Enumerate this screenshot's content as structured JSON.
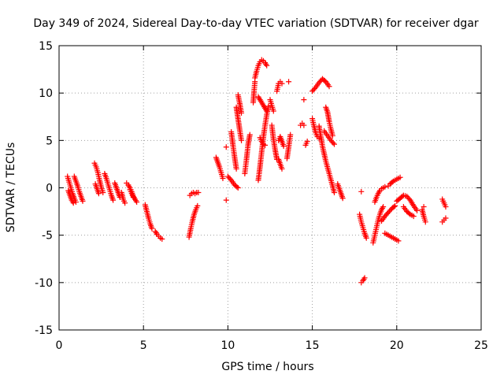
{
  "chart_data": {
    "type": "scatter",
    "title": "Day 349 of 2024, Sidereal Day-to-day VTEC variation (SDTVAR) for receiver dgar",
    "xlabel": "GPS time / hours",
    "ylabel": "SDTVAR / TECUs",
    "xlim": [
      0,
      25
    ],
    "ylim": [
      -15,
      15
    ],
    "xticks": [
      0,
      5,
      10,
      15,
      20,
      25
    ],
    "yticks": [
      -15,
      -10,
      -5,
      0,
      5,
      10,
      15
    ],
    "grid": true,
    "marker": "+",
    "series_color": "#ff0000",
    "segments": [
      [
        [
          0.5,
          1.2
        ],
        [
          0.6,
          0.6
        ],
        [
          0.7,
          0.0
        ],
        [
          0.8,
          -0.6
        ],
        [
          0.9,
          -1.1
        ],
        [
          1.0,
          -1.5
        ]
      ],
      [
        [
          0.55,
          -0.3
        ],
        [
          0.65,
          -0.8
        ],
        [
          0.75,
          -1.3
        ],
        [
          0.85,
          -1.6
        ]
      ],
      [
        [
          0.9,
          1.2
        ],
        [
          1.0,
          0.7
        ],
        [
          1.1,
          0.2
        ],
        [
          1.2,
          -0.4
        ],
        [
          1.3,
          -0.9
        ],
        [
          1.4,
          -1.4
        ]
      ],
      [
        [
          2.1,
          2.6
        ],
        [
          2.2,
          2.2
        ],
        [
          2.3,
          1.6
        ],
        [
          2.4,
          0.8
        ],
        [
          2.5,
          0.1
        ],
        [
          2.6,
          -0.5
        ]
      ],
      [
        [
          2.15,
          0.4
        ],
        [
          2.25,
          -0.1
        ],
        [
          2.35,
          -0.6
        ]
      ],
      [
        [
          2.7,
          1.5
        ],
        [
          2.8,
          1.0
        ],
        [
          2.9,
          0.4
        ],
        [
          3.0,
          -0.2
        ],
        [
          3.1,
          -0.8
        ],
        [
          3.2,
          -1.3
        ]
      ],
      [
        [
          3.3,
          0.5
        ],
        [
          3.4,
          0.0
        ],
        [
          3.5,
          -0.5
        ],
        [
          3.6,
          -1.0
        ]
      ],
      [
        [
          3.7,
          -0.5
        ],
        [
          3.8,
          -1.2
        ],
        [
          3.9,
          -1.6
        ]
      ],
      [
        [
          4.0,
          0.5
        ],
        [
          4.1,
          0.3
        ],
        [
          4.2,
          0.0
        ],
        [
          4.3,
          -0.4
        ],
        [
          4.4,
          -0.9
        ],
        [
          4.5,
          -1.2
        ],
        [
          4.6,
          -1.5
        ]
      ],
      [
        [
          4.2,
          -0.2
        ],
        [
          4.3,
          -0.6
        ],
        [
          4.4,
          -1.0
        ]
      ],
      [
        [
          5.1,
          -1.8
        ],
        [
          5.2,
          -2.5
        ],
        [
          5.3,
          -3.2
        ],
        [
          5.4,
          -3.8
        ],
        [
          5.5,
          -4.3
        ]
      ],
      [
        [
          5.7,
          -4.6
        ],
        [
          5.8,
          -4.9
        ],
        [
          5.9,
          -5.1
        ],
        [
          6.0,
          -5.3
        ],
        [
          6.1,
          -5.4
        ]
      ],
      [
        [
          7.7,
          -5.2
        ],
        [
          7.8,
          -4.3
        ],
        [
          7.9,
          -3.5
        ],
        [
          8.0,
          -2.8
        ],
        [
          8.1,
          -2.3
        ],
        [
          8.2,
          -1.9
        ]
      ],
      [
        [
          7.75,
          -0.8
        ],
        [
          7.85,
          -0.6
        ],
        [
          7.95,
          -0.5
        ],
        [
          8.05,
          -0.6
        ],
        [
          8.15,
          -0.5
        ],
        [
          8.25,
          -0.5
        ]
      ],
      [
        [
          9.3,
          3.2
        ],
        [
          9.4,
          2.7
        ],
        [
          9.5,
          2.2
        ],
        [
          9.6,
          1.6
        ],
        [
          9.7,
          1.0
        ]
      ],
      [
        [
          9.9,
          -1.3
        ]
      ],
      [
        [
          9.9,
          4.3
        ]
      ],
      [
        [
          10.0,
          1.2
        ],
        [
          10.2,
          0.8
        ],
        [
          10.4,
          0.3
        ],
        [
          10.6,
          0.0
        ]
      ],
      [
        [
          10.2,
          5.9
        ],
        [
          10.3,
          4.5
        ],
        [
          10.4,
          3.2
        ],
        [
          10.5,
          2.0
        ]
      ],
      [
        [
          10.5,
          8.5
        ],
        [
          10.6,
          7.3
        ],
        [
          10.7,
          6.1
        ],
        [
          10.8,
          5.0
        ]
      ],
      [
        [
          10.6,
          9.8
        ],
        [
          10.7,
          8.9
        ],
        [
          10.8,
          7.9
        ]
      ],
      [
        [
          11.0,
          1.5
        ],
        [
          11.1,
          3.0
        ],
        [
          11.2,
          4.6
        ],
        [
          11.3,
          5.6
        ]
      ],
      [
        [
          11.5,
          9.0
        ],
        [
          11.55,
          10.2
        ],
        [
          11.6,
          11.2
        ]
      ],
      [
        [
          11.6,
          11.6
        ],
        [
          11.7,
          12.3
        ],
        [
          11.8,
          12.9
        ],
        [
          11.9,
          13.3
        ],
        [
          12.0,
          13.5
        ],
        [
          12.1,
          13.4
        ],
        [
          12.2,
          13.2
        ],
        [
          12.3,
          12.9
        ]
      ],
      [
        [
          11.8,
          0.8
        ],
        [
          11.9,
          2.2
        ],
        [
          12.0,
          3.8
        ],
        [
          12.1,
          5.3
        ],
        [
          12.2,
          6.6
        ],
        [
          12.3,
          7.7
        ],
        [
          12.4,
          8.6
        ]
      ],
      [
        [
          11.8,
          9.6
        ],
        [
          11.9,
          9.3
        ],
        [
          12.0,
          9.0
        ],
        [
          12.1,
          8.7
        ],
        [
          12.2,
          8.4
        ],
        [
          12.3,
          8.1
        ]
      ],
      [
        [
          11.9,
          5.3
        ],
        [
          12.0,
          4.9
        ],
        [
          12.1,
          4.6
        ],
        [
          12.2,
          4.5
        ]
      ],
      [
        [
          12.5,
          9.3
        ],
        [
          12.6,
          8.7
        ],
        [
          12.7,
          8.1
        ]
      ],
      [
        [
          12.6,
          6.6
        ],
        [
          12.7,
          5.1
        ],
        [
          12.8,
          4.0
        ],
        [
          12.9,
          3.0
        ]
      ],
      [
        [
          12.9,
          10.2
        ],
        [
          13.0,
          11.0
        ],
        [
          13.1,
          11.2
        ],
        [
          13.2,
          11.0
        ]
      ],
      [
        [
          13.0,
          5.0
        ],
        [
          13.1,
          5.4
        ],
        [
          13.2,
          4.9
        ],
        [
          13.3,
          4.4
        ]
      ],
      [
        [
          13.0,
          3.0
        ],
        [
          13.1,
          2.5
        ],
        [
          13.2,
          2.0
        ]
      ],
      [
        [
          13.5,
          3.1
        ],
        [
          13.6,
          4.3
        ],
        [
          13.7,
          5.6
        ]
      ],
      [
        [
          13.6,
          11.2
        ]
      ],
      [
        [
          14.3,
          6.6
        ],
        [
          14.4,
          6.8
        ],
        [
          14.5,
          6.6
        ]
      ],
      [
        [
          14.5,
          9.3
        ]
      ],
      [
        [
          14.6,
          4.5
        ],
        [
          14.7,
          4.9
        ]
      ],
      [
        [
          15.0,
          7.3
        ],
        [
          15.1,
          6.5
        ],
        [
          15.2,
          5.8
        ],
        [
          15.3,
          5.4
        ],
        [
          15.4,
          5.2
        ]
      ],
      [
        [
          15.0,
          10.2
        ],
        [
          15.2,
          10.6
        ],
        [
          15.4,
          11.1
        ],
        [
          15.6,
          11.5
        ],
        [
          15.8,
          11.2
        ],
        [
          16.0,
          10.7
        ]
      ],
      [
        [
          15.4,
          6.5
        ],
        [
          15.6,
          4.4
        ],
        [
          15.8,
          2.8
        ],
        [
          16.0,
          1.5
        ],
        [
          16.2,
          0.2
        ],
        [
          16.3,
          -0.5
        ]
      ],
      [
        [
          15.7,
          6.0
        ],
        [
          15.9,
          5.5
        ],
        [
          16.1,
          5.0
        ],
        [
          16.3,
          4.6
        ]
      ],
      [
        [
          15.8,
          8.5
        ],
        [
          15.9,
          8.0
        ],
        [
          16.0,
          7.0
        ],
        [
          16.1,
          6.2
        ],
        [
          16.2,
          5.5
        ]
      ],
      [
        [
          16.5,
          0.4
        ],
        [
          16.6,
          -0.1
        ],
        [
          16.7,
          -0.6
        ],
        [
          16.8,
          -1.1
        ]
      ],
      [
        [
          17.8,
          -2.8
        ],
        [
          17.9,
          -3.6
        ],
        [
          18.0,
          -4.2
        ],
        [
          18.1,
          -4.8
        ],
        [
          18.2,
          -5.3
        ]
      ],
      [
        [
          17.9,
          -0.4
        ]
      ],
      [
        [
          17.9,
          -10.0
        ],
        [
          18.0,
          -9.8
        ],
        [
          18.1,
          -9.5
        ]
      ],
      [
        [
          18.6,
          -5.8
        ],
        [
          18.7,
          -5.0
        ],
        [
          18.8,
          -4.2
        ],
        [
          18.9,
          -3.4
        ],
        [
          19.0,
          -2.8
        ],
        [
          19.1,
          -2.3
        ],
        [
          19.2,
          -2.0
        ]
      ],
      [
        [
          18.7,
          -1.5
        ],
        [
          18.8,
          -1.0
        ],
        [
          18.9,
          -0.6
        ],
        [
          19.0,
          -0.3
        ],
        [
          19.1,
          -0.1
        ],
        [
          19.3,
          0.1
        ]
      ],
      [
        [
          19.1,
          -3.5
        ],
        [
          19.3,
          -3.0
        ],
        [
          19.5,
          -2.6
        ],
        [
          19.7,
          -2.2
        ],
        [
          19.9,
          -1.9
        ]
      ],
      [
        [
          19.3,
          -4.8
        ],
        [
          19.5,
          -5.0
        ],
        [
          19.7,
          -5.2
        ],
        [
          19.9,
          -5.4
        ],
        [
          20.1,
          -5.6
        ]
      ],
      [
        [
          19.5,
          0.2
        ],
        [
          19.6,
          0.4
        ],
        [
          19.8,
          0.7
        ],
        [
          20.0,
          0.9
        ],
        [
          20.2,
          1.1
        ]
      ],
      [
        [
          20.0,
          -1.4
        ],
        [
          20.2,
          -1.1
        ],
        [
          20.4,
          -0.8
        ],
        [
          20.6,
          -0.9
        ],
        [
          20.8,
          -1.3
        ],
        [
          21.0,
          -1.9
        ],
        [
          21.2,
          -2.4
        ]
      ],
      [
        [
          20.4,
          -2.0
        ],
        [
          20.6,
          -2.5
        ],
        [
          20.8,
          -2.8
        ],
        [
          21.0,
          -3.0
        ]
      ],
      [
        [
          21.5,
          -2.3
        ],
        [
          21.6,
          -3.0
        ],
        [
          21.7,
          -3.6
        ]
      ],
      [
        [
          21.6,
          -2.0
        ]
      ],
      [
        [
          22.7,
          -1.2
        ],
        [
          22.8,
          -1.6
        ],
        [
          22.9,
          -2.0
        ]
      ],
      [
        [
          22.7,
          -3.6
        ],
        [
          22.8,
          -3.4
        ],
        [
          22.9,
          -3.2
        ]
      ]
    ]
  }
}
